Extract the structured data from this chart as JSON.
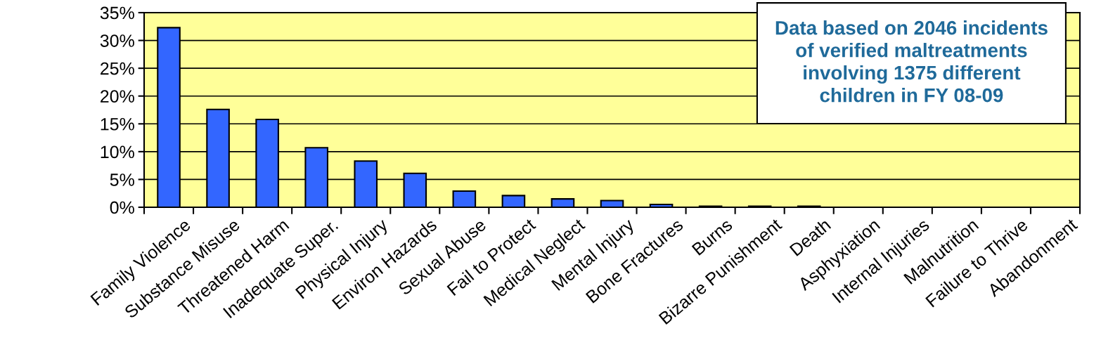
{
  "chart_data": {
    "type": "bar",
    "categories": [
      "Family Violence",
      "Substance Misuse",
      "Threatened Harm",
      "Inadequate Super.",
      "Physical Injury",
      "Environ Hazards",
      "Sexual Abuse",
      "Fail to Protect",
      "Medical Neglect",
      "Mental Injury",
      "Bone Fractures",
      "Burns",
      "Bizarre Punishment",
      "Death",
      "Asphyxiation",
      "Internal Injuries",
      "Malnutrition",
      "Failure to Thrive",
      "Abandonment"
    ],
    "values": [
      32.3,
      17.6,
      15.8,
      10.7,
      8.3,
      6.1,
      2.9,
      2.1,
      1.5,
      1.2,
      0.5,
      0.2,
      0.2,
      0.2,
      0,
      0,
      0,
      0,
      0
    ],
    "color": "#3366ff",
    "ylim": [
      0,
      35
    ],
    "yticks": [
      {
        "value": 0,
        "label": "0%"
      },
      {
        "value": 5,
        "label": "5%"
      },
      {
        "value": 10,
        "label": "10%"
      },
      {
        "value": 15,
        "label": "15%"
      },
      {
        "value": 20,
        "label": "20%"
      },
      {
        "value": 25,
        "label": "25%"
      },
      {
        "value": 30,
        "label": "30%"
      },
      {
        "value": 35,
        "label": "35%"
      }
    ],
    "grid": "y",
    "annotations": [
      "Data based on 2046 incidents\nof verified maltreatments\ninvolving 1375 different\nchildren in FY 08-09"
    ]
  }
}
